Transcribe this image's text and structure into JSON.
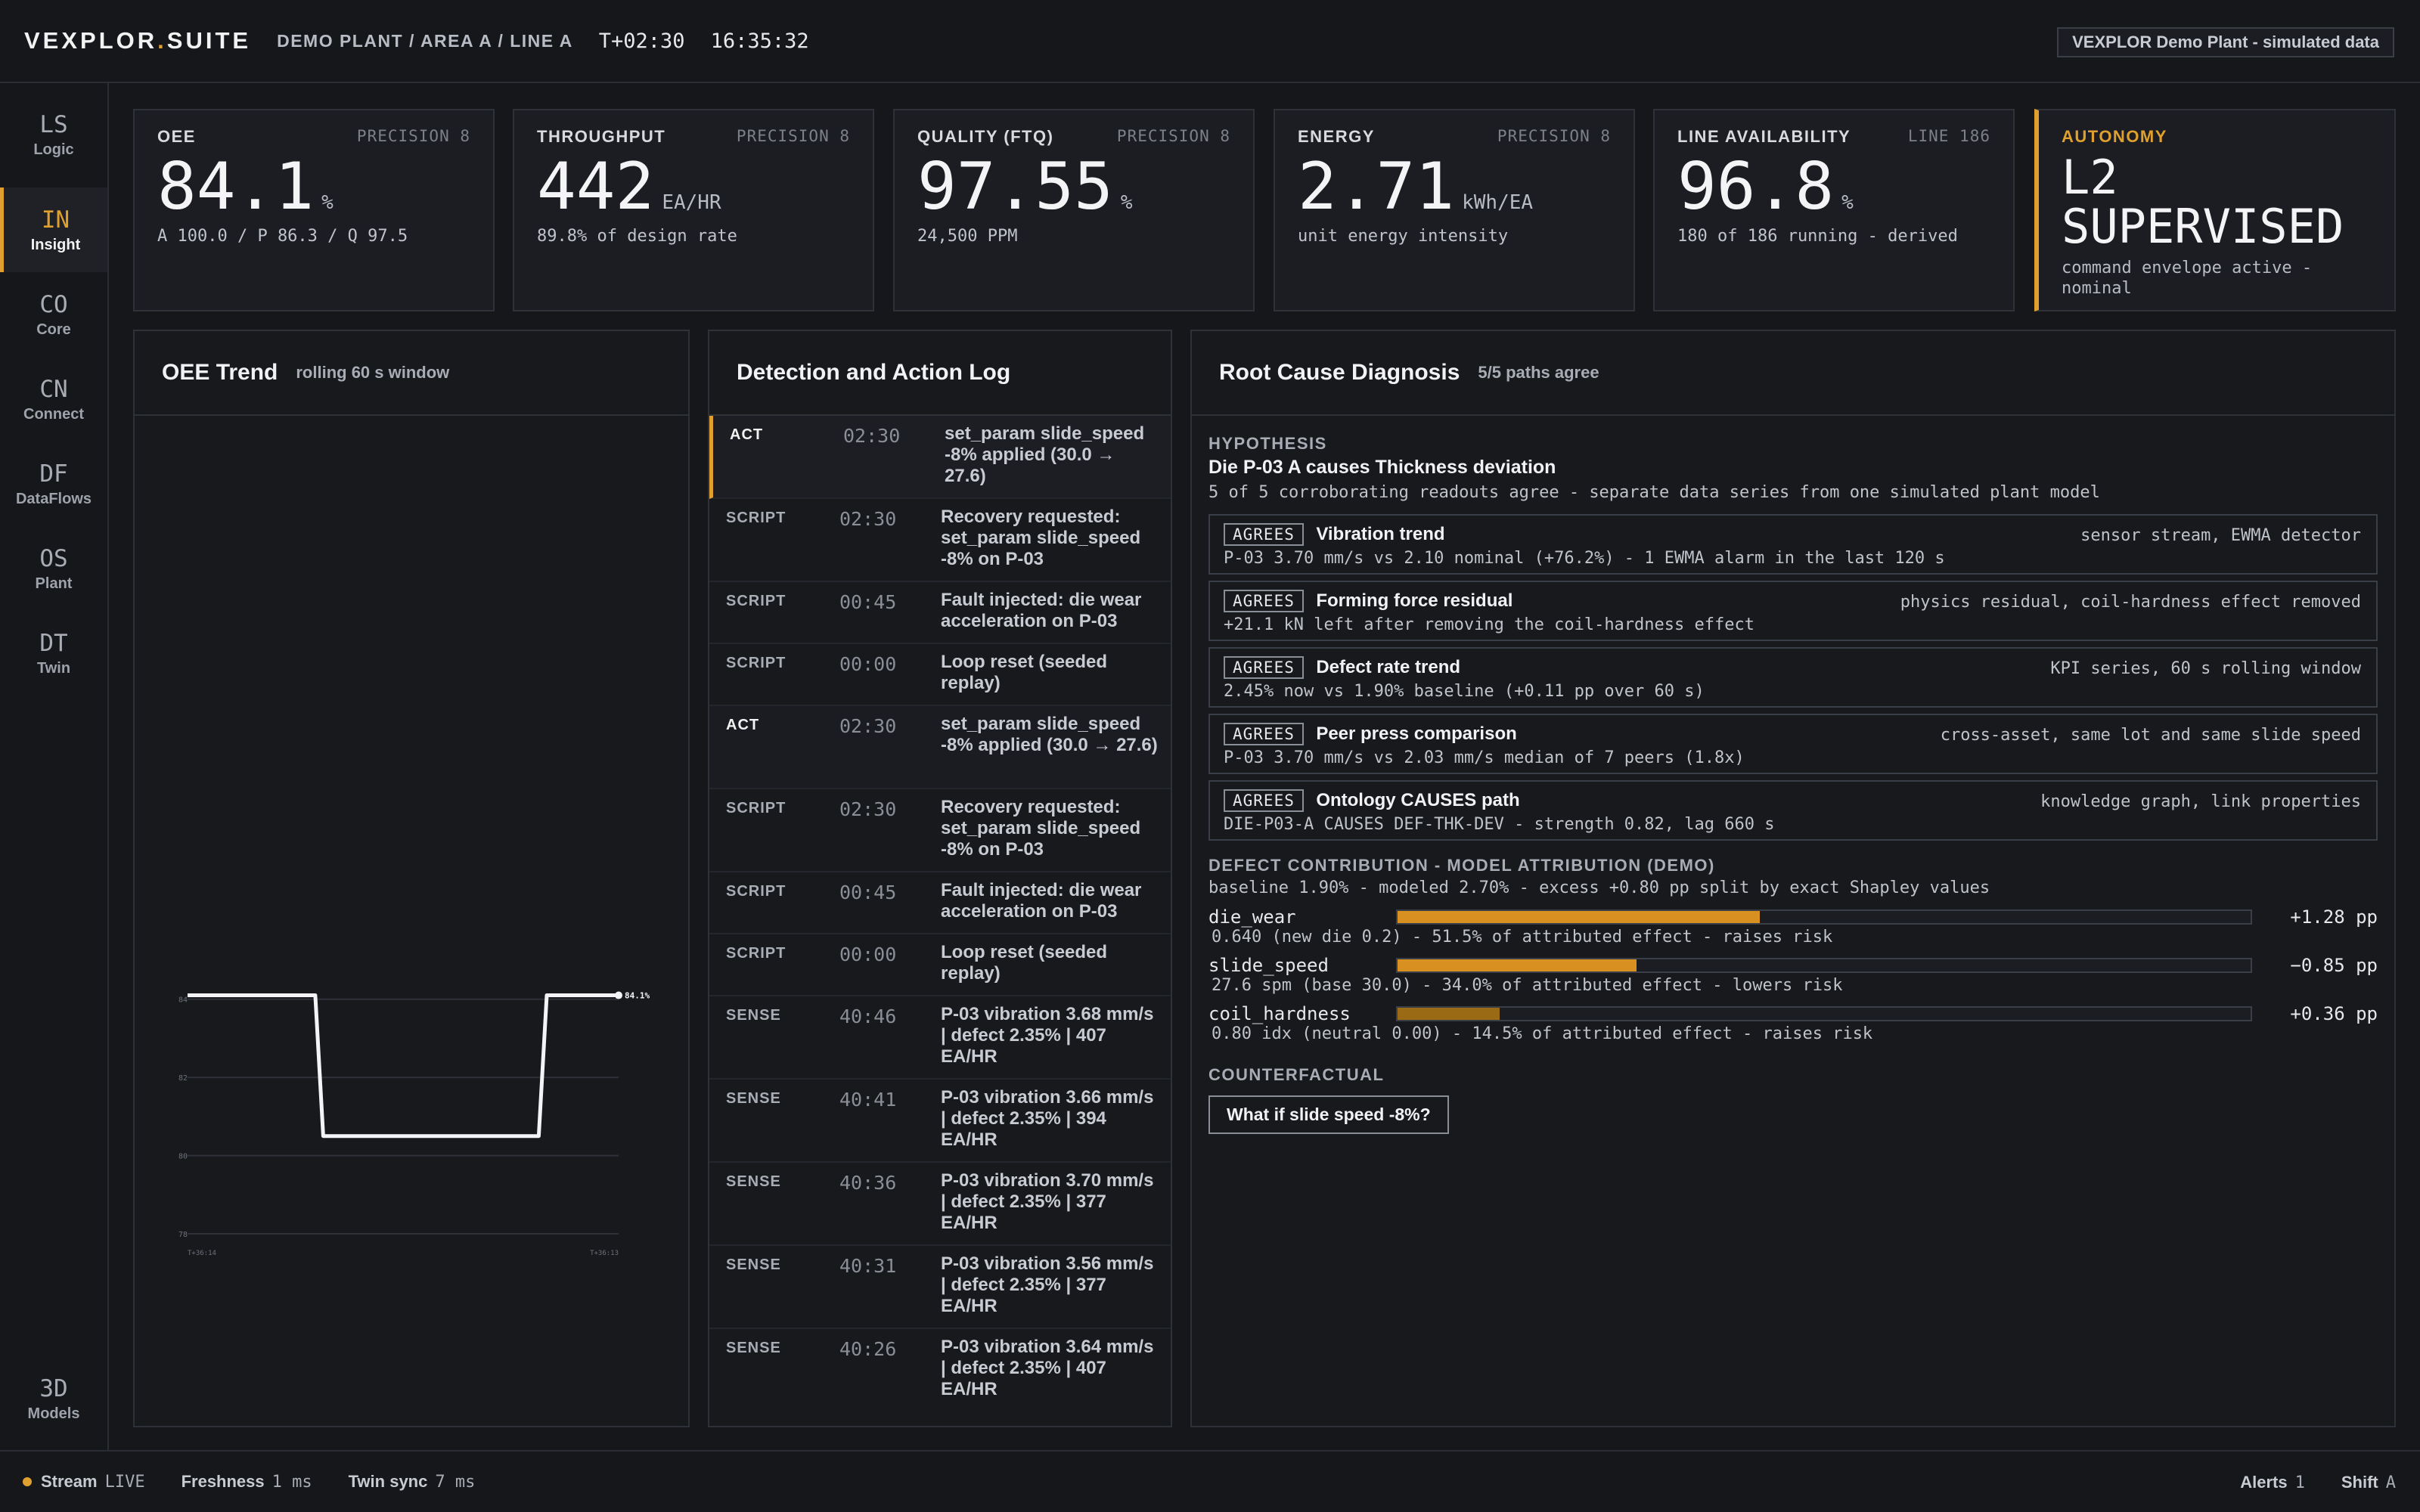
{
  "header": {
    "brand_main": "VEXPLOR",
    "brand_dot": ".",
    "brand_suite": "SUITE",
    "breadcrumb": "DEMO PLANT / AREA A / LINE A",
    "mission_time": "T+02:30",
    "clock_time": "16:35:32",
    "badge": "VEXPLOR Demo Plant - simulated data"
  },
  "sidebar": {
    "items": [
      {
        "code": "LS",
        "label": "Logic"
      },
      {
        "code": "IN",
        "label": "Insight",
        "active": true
      },
      {
        "code": "CO",
        "label": "Core"
      },
      {
        "code": "CN",
        "label": "Connect"
      },
      {
        "code": "DF",
        "label": "DataFlows"
      },
      {
        "code": "OS",
        "label": "Plant"
      },
      {
        "code": "DT",
        "label": "Twin"
      }
    ],
    "bottom": {
      "code": "3D",
      "label": "Models"
    }
  },
  "kpis": [
    {
      "label": "OEE",
      "meta": "PRECISION 8",
      "value": "84.1",
      "unit": "%",
      "sub": "A 100.0 / P 86.3 / Q 97.5"
    },
    {
      "label": "THROUGHPUT",
      "meta": "PRECISION 8",
      "value": "442",
      "unit": "EA/HR",
      "sub": "89.8% of design rate"
    },
    {
      "label": "QUALITY (FTQ)",
      "meta": "PRECISION 8",
      "value": "97.55",
      "unit": "%",
      "sub": "24,500 PPM"
    },
    {
      "label": "ENERGY",
      "meta": "PRECISION 8",
      "value": "2.71",
      "unit": "kWh/EA",
      "sub": "unit energy intensity"
    },
    {
      "label": "LINE AVAILABILITY",
      "meta": "LINE 186",
      "value": "96.8",
      "unit": "%",
      "sub": "180 of 186 running - derived"
    }
  ],
  "autonomy": {
    "label": "AUTONOMY",
    "line1": "L2",
    "line2": "SUPERVISED",
    "sub": "command envelope active - nominal",
    "accent": "#e0a030"
  },
  "trend": {
    "title": "OEE Trend",
    "subtitle": "rolling 60 s window",
    "chart_data": {
      "type": "line",
      "y_ticks": [
        "84",
        "82",
        "80",
        "78"
      ],
      "ylim": [
        78,
        85
      ],
      "x_start_label": "T+36:14",
      "x_end_label": "T+36:13",
      "end_label": "84.1%",
      "values": [
        84.1,
        84.1,
        84.1,
        84.1,
        84.1,
        84.1,
        84.1,
        84.1,
        84.1,
        84.1,
        84.1,
        84.1,
        84.1,
        84.1,
        84.1,
        84.1,
        84.1,
        80.5,
        80.5,
        80.5,
        80.5,
        80.5,
        80.5,
        80.5,
        80.5,
        80.5,
        80.5,
        80.5,
        80.5,
        80.5,
        80.5,
        80.5,
        80.5,
        80.5,
        80.5,
        80.5,
        80.5,
        80.5,
        80.5,
        80.5,
        80.5,
        80.5,
        80.5,
        80.5,
        80.5,
        84.1,
        84.1,
        84.1,
        84.1,
        84.1,
        84.1,
        84.1,
        84.1,
        84.1,
        84.1
      ]
    }
  },
  "log": {
    "title": "Detection and Action Log",
    "rows": [
      {
        "tag": "ACT",
        "time": "02:30",
        "text": "set_param slide_speed -8% applied (30.0 → 27.6)",
        "act": true
      },
      {
        "tag": "SCRIPT",
        "time": "02:30",
        "text": "Recovery requested: set_param slide_speed -8% on P-03"
      },
      {
        "tag": "SCRIPT",
        "time": "00:45",
        "text": "Fault injected: die wear acceleration on P-03"
      },
      {
        "tag": "SCRIPT",
        "time": "00:00",
        "text": "Loop reset (seeded replay)"
      },
      {
        "tag": "ACT",
        "time": "02:30",
        "text": "set_param slide_speed -8% applied (30.0 → 27.6)",
        "act2": true
      },
      {
        "tag": "SCRIPT",
        "time": "02:30",
        "text": "Recovery requested: set_param slide_speed -8% on P-03"
      },
      {
        "tag": "SCRIPT",
        "time": "00:45",
        "text": "Fault injected: die wear acceleration on P-03"
      },
      {
        "tag": "SCRIPT",
        "time": "00:00",
        "text": "Loop reset (seeded replay)"
      },
      {
        "tag": "SENSE",
        "time": "40:46",
        "text": "P-03 vibration 3.68 mm/s | defect 2.35% | 407 EA/HR"
      },
      {
        "tag": "SENSE",
        "time": "40:41",
        "text": "P-03 vibration 3.66 mm/s | defect 2.35% | 394 EA/HR"
      },
      {
        "tag": "SENSE",
        "time": "40:36",
        "text": "P-03 vibration 3.70 mm/s | defect 2.35% | 377 EA/HR"
      },
      {
        "tag": "SENSE",
        "time": "40:31",
        "text": "P-03 vibration 3.56 mm/s | defect 2.35% | 377 EA/HR"
      },
      {
        "tag": "SENSE",
        "time": "40:26",
        "text": "P-03 vibration 3.64 mm/s | defect 2.35% | 407 EA/HR"
      }
    ]
  },
  "rootcause": {
    "title": "Root Cause Diagnosis",
    "subtitle": "5/5 paths agree",
    "hypothesis_label": "HYPOTHESIS",
    "hypothesis": "Die P-03 A causes Thickness deviation",
    "hypothesis_note": "5 of 5 corroborating readouts agree - separate data series from one simulated plant model",
    "agreements": [
      {
        "badge": "AGREES",
        "title": "Vibration trend",
        "source": "sensor stream, EWMA detector",
        "detail": "P-03 3.70 mm/s vs 2.10 nominal (+76.2%) - 1 EWMA alarm in the last 120 s"
      },
      {
        "badge": "AGREES",
        "title": "Forming force residual",
        "source": "physics residual, coil-hardness effect removed",
        "detail": "+21.1 kN left after removing the coil-hardness effect"
      },
      {
        "badge": "AGREES",
        "title": "Defect rate trend",
        "source": "KPI series, 60 s rolling window",
        "detail": "2.45% now vs 1.90% baseline (+0.11 pp over 60 s)"
      },
      {
        "badge": "AGREES",
        "title": "Peer press comparison",
        "source": "cross-asset, same lot and same slide speed",
        "detail": "P-03 3.70 mm/s vs 2.03 mm/s median of 7 peers (1.8x)"
      },
      {
        "badge": "AGREES",
        "title": "Ontology CAUSES path",
        "source": "knowledge graph, link properties",
        "detail": "DIE-P03-A CAUSES DEF-THK-DEV - strength 0.82, lag 660 s"
      }
    ],
    "contribution_label": "DEFECT CONTRIBUTION - MODEL ATTRIBUTION (DEMO)",
    "contribution_note": "baseline 1.90% - modeled 2.70% - excess +0.80 pp split by exact Shapley values",
    "contributions": [
      {
        "name": "die_wear",
        "value": "+1.28 pp",
        "share": 0.425,
        "desc": "0.640 (new die 0.2) - 51.5% of attributed effect - raises risk"
      },
      {
        "name": "slide_speed",
        "value": "−0.85 pp",
        "share": 0.28,
        "desc": "27.6 spm (base 30.0) - 34.0% of attributed effect - lowers risk"
      },
      {
        "name": "coil_hardness",
        "value": "+0.36 pp",
        "share": 0.12,
        "desc": "0.80 idx (neutral 0.00) - 14.5% of attributed effect - raises risk",
        "dim": true
      }
    ],
    "counterfactual_label": "COUNTERFACTUAL",
    "counterfactual_button": "What if slide speed -8%?"
  },
  "footer": {
    "stream_label": "Stream",
    "stream_value": "LIVE",
    "freshness_label": "Freshness",
    "freshness_value": "1 ms",
    "twin_label": "Twin sync",
    "twin_value": "7 ms",
    "alerts_label": "Alerts",
    "alerts_value": "1",
    "shift_label": "Shift",
    "shift_value": "A"
  }
}
